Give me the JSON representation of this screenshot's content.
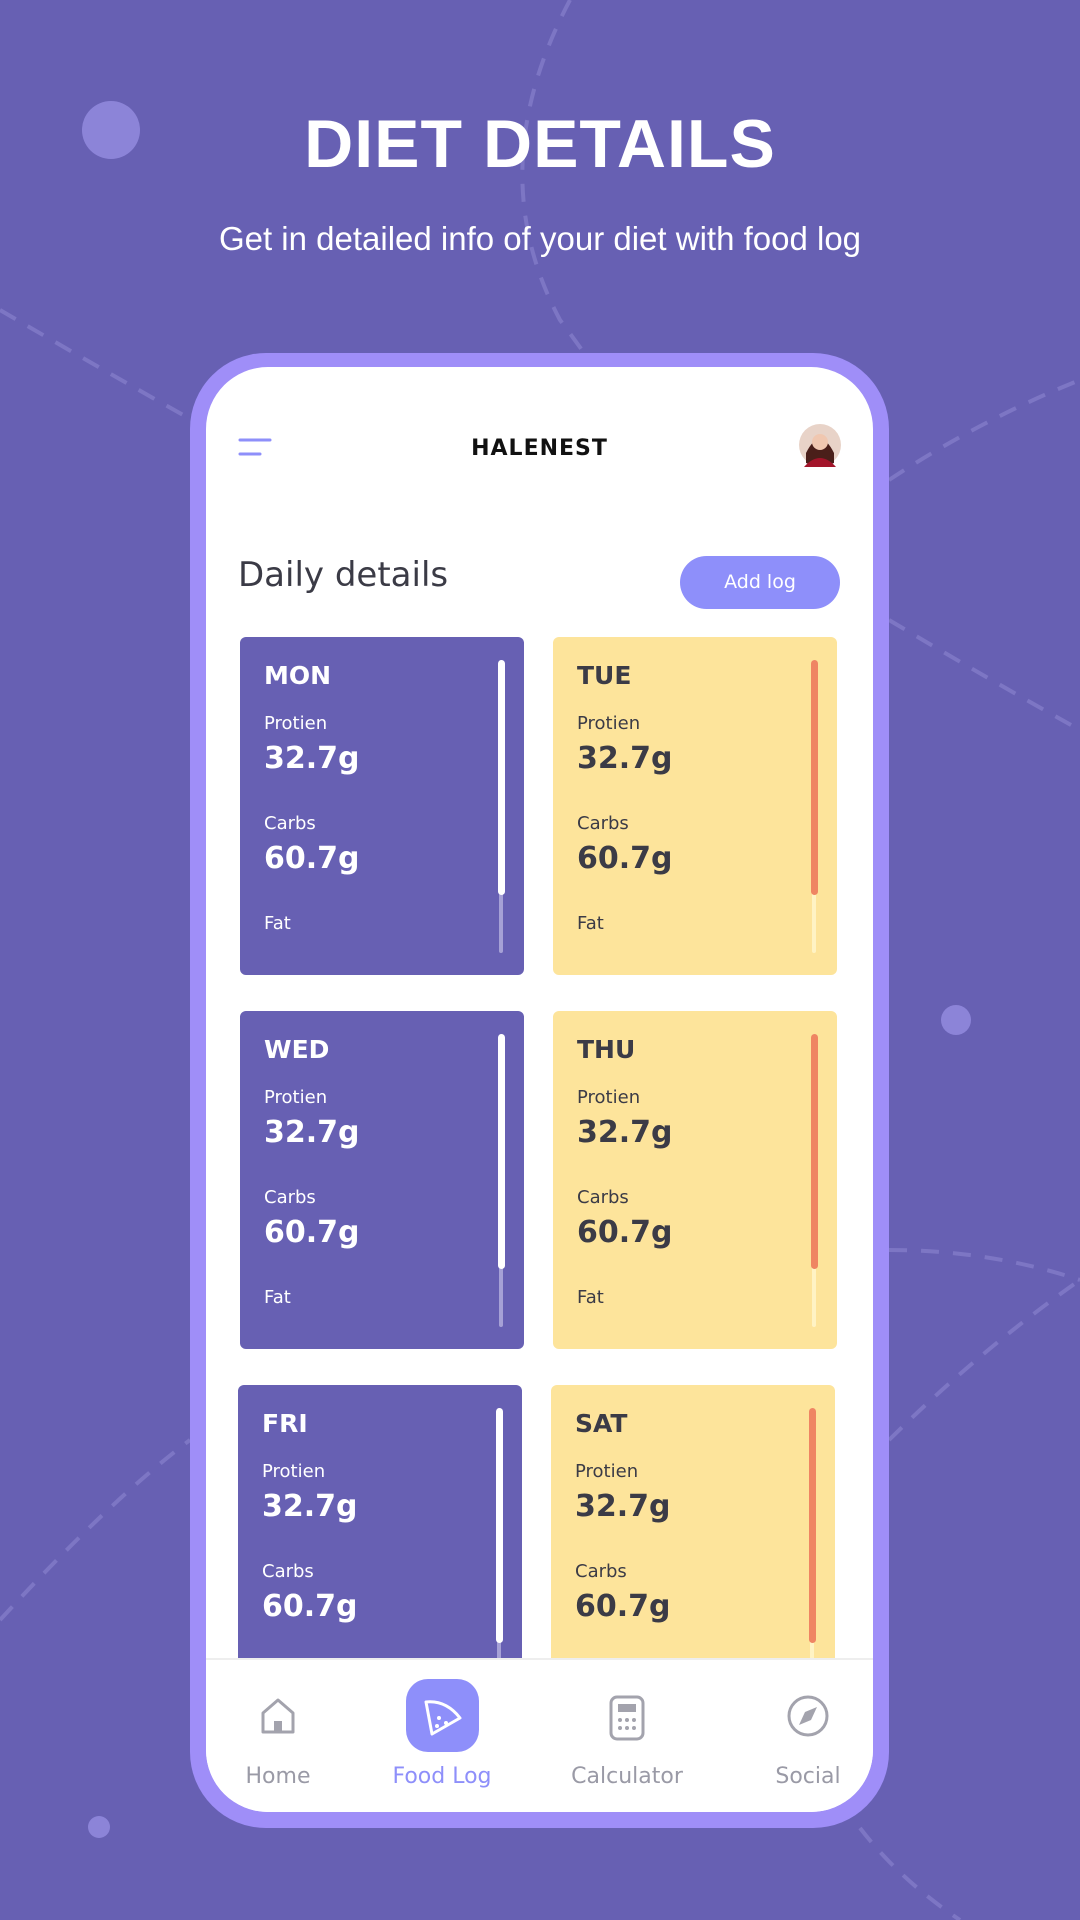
{
  "header": {
    "title": "DIET DETAILS",
    "subtitle": "Get in detailed info of your diet with food log"
  },
  "app": {
    "name": "HALENEST",
    "section_title": "Daily details",
    "add_button": "Add log"
  },
  "cards": [
    {
      "day": "MON",
      "protein_label": "Protien",
      "protein": "32.7g",
      "carbs_label": "Carbs",
      "carbs": "60.7g",
      "fat_label": "Fat"
    },
    {
      "day": "TUE",
      "protein_label": "Protien",
      "protein": "32.7g",
      "carbs_label": "Carbs",
      "carbs": "60.7g",
      "fat_label": "Fat"
    },
    {
      "day": "WED",
      "protein_label": "Protien",
      "protein": "32.7g",
      "carbs_label": "Carbs",
      "carbs": "60.7g",
      "fat_label": "Fat"
    },
    {
      "day": "THU",
      "protein_label": "Protien",
      "protein": "32.7g",
      "carbs_label": "Carbs",
      "carbs": "60.7g",
      "fat_label": "Fat"
    },
    {
      "day": "FRI",
      "protein_label": "Protien",
      "protein": "32.7g",
      "carbs_label": "Carbs",
      "carbs": "60.7g"
    },
    {
      "day": "SAT",
      "protein_label": "Protien",
      "protein": "32.7g",
      "carbs_label": "Carbs",
      "carbs": "60.7g"
    }
  ],
  "nav": [
    "Home",
    "Food Log",
    "Calculator",
    "Social"
  ]
}
